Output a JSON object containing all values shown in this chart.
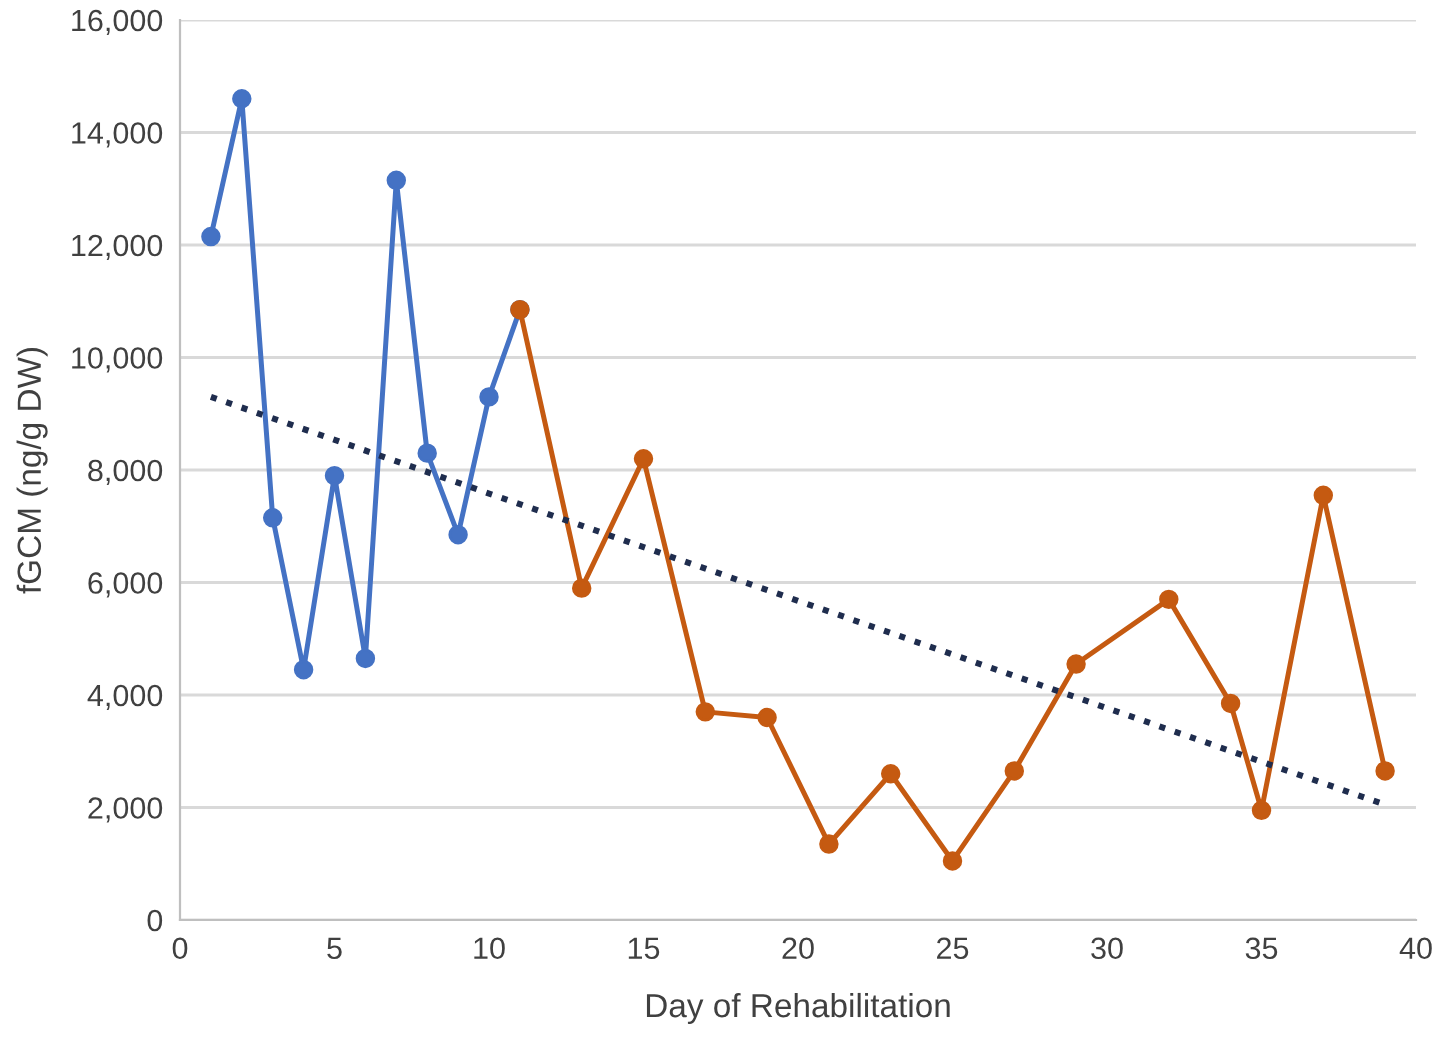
{
  "chart_data": {
    "type": "line",
    "xlabel": "Day of Rehabilitation",
    "ylabel": "fGCM (ng/g DW)",
    "xlim": [
      0,
      40
    ],
    "xticks": [
      0,
      5,
      10,
      15,
      20,
      25,
      30,
      35,
      40
    ],
    "ylim": [
      0,
      16000
    ],
    "yticks": [
      {
        "value": 0,
        "label": "0"
      },
      {
        "value": 2000,
        "label": "2,000"
      },
      {
        "value": 4000,
        "label": "4,000"
      },
      {
        "value": 6000,
        "label": "6,000"
      },
      {
        "value": 8000,
        "label": "8,000"
      },
      {
        "value": 10000,
        "label": "10,000"
      },
      {
        "value": 12000,
        "label": "12,000"
      },
      {
        "value": 14000,
        "label": "14,000"
      },
      {
        "value": 16000,
        "label": "16,000"
      }
    ],
    "grid": "y",
    "marker": "circle",
    "legend": false,
    "series": [
      {
        "color": "#4472c4",
        "x": [
          1,
          2,
          3,
          4,
          5,
          6,
          7,
          8,
          9,
          10,
          11
        ],
        "values": [
          12150,
          14600,
          7150,
          4450,
          7900,
          4650,
          13150,
          8300,
          6850,
          9300,
          10850
        ]
      },
      {
        "color": "#c55a11",
        "x": [
          11,
          13,
          15,
          17,
          19,
          21,
          23,
          25,
          27,
          29,
          32,
          34,
          35,
          37,
          39
        ],
        "values": [
          10850,
          5900,
          8200,
          3700,
          3600,
          1350,
          2600,
          1050,
          2650,
          4550,
          5700,
          3850,
          1950,
          7550,
          2650
        ]
      },
      {
        "color": "#1f2d4e",
        "line_style": "dotted",
        "marker": "none",
        "x": [
          1,
          39
        ],
        "values": [
          9300,
          2050
        ]
      }
    ]
  }
}
